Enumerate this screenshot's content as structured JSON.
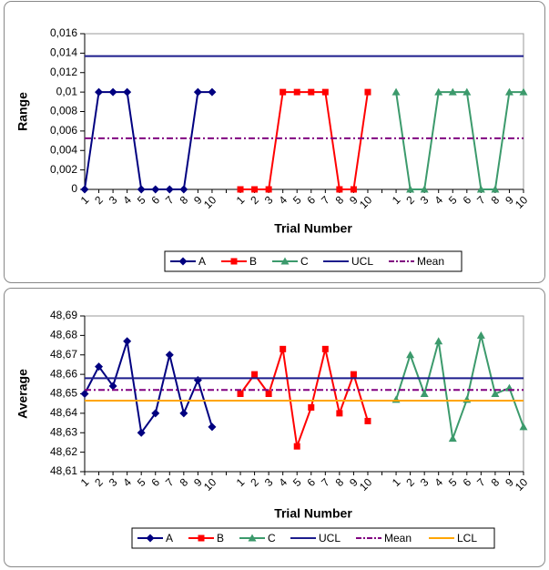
{
  "chart_data": [
    {
      "type": "line",
      "y_label": "Range",
      "x_label": "Trial Number",
      "categories": [
        "1",
        "2",
        "3",
        "4",
        "5",
        "6",
        "7",
        "8",
        "9",
        "10",
        null,
        "1",
        "2",
        "3",
        "4",
        "5",
        "6",
        "7",
        "8",
        "9",
        "10",
        null,
        "1",
        "2",
        "3",
        "4",
        "5",
        "6",
        "7",
        "8",
        "9",
        "10"
      ],
      "ylim": [
        0,
        0.016
      ],
      "yticks": [
        0,
        {
          "value": 0.002,
          "label": "0,002"
        },
        {
          "value": 0.004,
          "label": "0,004"
        },
        {
          "value": 0.006,
          "label": "0,006"
        },
        {
          "value": 0.008,
          "label": "0,008"
        },
        {
          "value": 0.01,
          "label": "0,01"
        },
        {
          "value": 0.012,
          "label": "0,012"
        },
        {
          "value": 0.014,
          "label": "0,014"
        },
        {
          "value": 0.016,
          "label": "0,016"
        }
      ],
      "grid": false,
      "series": [
        {
          "name": "A",
          "color": "#000080",
          "marker": "diamond",
          "values": [
            0,
            0.01,
            0.01,
            0.01,
            0,
            0,
            0,
            0,
            0.01,
            0.01,
            null,
            null,
            null,
            null,
            null,
            null,
            null,
            null,
            null,
            null,
            null,
            null,
            null,
            null,
            null,
            null,
            null,
            null,
            null,
            null,
            null,
            null
          ]
        },
        {
          "name": "B",
          "color": "#ff0000",
          "marker": "square",
          "values": [
            null,
            null,
            null,
            null,
            null,
            null,
            null,
            null,
            null,
            null,
            null,
            0,
            0,
            0,
            0.01,
            0.01,
            0.01,
            0.01,
            0,
            0,
            0.01,
            null,
            null,
            null,
            null,
            null,
            null,
            null,
            null,
            null,
            null,
            null
          ]
        },
        {
          "name": "C",
          "color": "#3c9a6c",
          "marker": "triangle",
          "values": [
            null,
            null,
            null,
            null,
            null,
            null,
            null,
            null,
            null,
            null,
            null,
            null,
            null,
            null,
            null,
            null,
            null,
            null,
            null,
            null,
            null,
            null,
            0.01,
            0,
            0,
            0.01,
            0.01,
            0.01,
            0,
            0,
            0.01,
            0.01
          ]
        },
        {
          "name": "UCL",
          "color": "#1c1c8c",
          "marker": "none",
          "values": [
            0.0137,
            0.0137,
            0.0137,
            0.0137,
            0.0137,
            0.0137,
            0.0137,
            0.0137,
            0.0137,
            0.0137,
            0.0137,
            0.0137,
            0.0137,
            0.0137,
            0.0137,
            0.0137,
            0.0137,
            0.0137,
            0.0137,
            0.0137,
            0.0137,
            0.0137,
            0.0137,
            0.0137,
            0.0137,
            0.0137,
            0.0137,
            0.0137,
            0.0137,
            0.0137,
            0.0137,
            0.0137
          ]
        },
        {
          "name": "Mean",
          "color": "#800080",
          "marker": "none",
          "dash": true,
          "values": [
            0.00525,
            0.00525,
            0.00525,
            0.00525,
            0.00525,
            0.00525,
            0.00525,
            0.00525,
            0.00525,
            0.00525,
            0.00525,
            0.00525,
            0.00525,
            0.00525,
            0.00525,
            0.00525,
            0.00525,
            0.00525,
            0.00525,
            0.00525,
            0.00525,
            0.00525,
            0.00525,
            0.00525,
            0.00525,
            0.00525,
            0.00525,
            0.00525,
            0.00525,
            0.00525,
            0.00525,
            0.00525
          ]
        }
      ]
    },
    {
      "type": "line",
      "y_label": "Average",
      "x_label": "Trial Number",
      "categories": [
        "1",
        "2",
        "3",
        "4",
        "5",
        "6",
        "7",
        "8",
        "9",
        "10",
        null,
        "1",
        "2",
        "3",
        "4",
        "5",
        "6",
        "7",
        "8",
        "9",
        "10",
        null,
        "1",
        "2",
        "3",
        "4",
        "5",
        "6",
        "7",
        "8",
        "9",
        "10"
      ],
      "ylim": [
        48.61,
        48.69
      ],
      "yticks": [
        {
          "value": 48.61,
          "label": "48,61"
        },
        {
          "value": 48.62,
          "label": "48,62"
        },
        {
          "value": 48.63,
          "label": "48,63"
        },
        {
          "value": 48.64,
          "label": "48,64"
        },
        {
          "value": 48.65,
          "label": "48,65"
        },
        {
          "value": 48.66,
          "label": "48,66"
        },
        {
          "value": 48.67,
          "label": "48,67"
        },
        {
          "value": 48.68,
          "label": "48,68"
        },
        {
          "value": 48.69,
          "label": "48,69"
        }
      ],
      "grid": false,
      "series": [
        {
          "name": "A",
          "color": "#000080",
          "marker": "diamond",
          "values": [
            48.65,
            48.664,
            48.654,
            48.677,
            48.63,
            48.64,
            48.67,
            48.64,
            48.657,
            48.633,
            null,
            null,
            null,
            null,
            null,
            null,
            null,
            null,
            null,
            null,
            null,
            null,
            null,
            null,
            null,
            null,
            null,
            null,
            null,
            null,
            null,
            null
          ]
        },
        {
          "name": "B",
          "color": "#ff0000",
          "marker": "square",
          "values": [
            null,
            null,
            null,
            null,
            null,
            null,
            null,
            null,
            null,
            null,
            null,
            48.65,
            48.66,
            48.65,
            48.673,
            48.623,
            48.643,
            48.673,
            48.64,
            48.66,
            48.636,
            null,
            null,
            null,
            null,
            null,
            null,
            null,
            null,
            null,
            null,
            null
          ]
        },
        {
          "name": "C",
          "color": "#3c9a6c",
          "marker": "triangle",
          "values": [
            null,
            null,
            null,
            null,
            null,
            null,
            null,
            null,
            null,
            null,
            null,
            null,
            null,
            null,
            null,
            null,
            null,
            null,
            null,
            null,
            null,
            null,
            48.647,
            48.67,
            48.65,
            48.677,
            48.627,
            48.647,
            48.68,
            48.65,
            48.653,
            48.633
          ]
        },
        {
          "name": "UCL",
          "color": "#1c1c8c",
          "marker": "none",
          "values": [
            48.658,
            48.658,
            48.658,
            48.658,
            48.658,
            48.658,
            48.658,
            48.658,
            48.658,
            48.658,
            48.658,
            48.658,
            48.658,
            48.658,
            48.658,
            48.658,
            48.658,
            48.658,
            48.658,
            48.658,
            48.658,
            48.658,
            48.658,
            48.658,
            48.658,
            48.658,
            48.658,
            48.658,
            48.658,
            48.658,
            48.658,
            48.658
          ]
        },
        {
          "name": "Mean",
          "color": "#800080",
          "marker": "none",
          "dash": true,
          "values": [
            48.652,
            48.652,
            48.652,
            48.652,
            48.652,
            48.652,
            48.652,
            48.652,
            48.652,
            48.652,
            48.652,
            48.652,
            48.652,
            48.652,
            48.652,
            48.652,
            48.652,
            48.652,
            48.652,
            48.652,
            48.652,
            48.652,
            48.652,
            48.652,
            48.652,
            48.652,
            48.652,
            48.652,
            48.652,
            48.652,
            48.652,
            48.652
          ]
        },
        {
          "name": "LCL",
          "color": "#ffa500",
          "marker": "none",
          "values": [
            48.6465,
            48.6465,
            48.6465,
            48.6465,
            48.6465,
            48.6465,
            48.6465,
            48.6465,
            48.6465,
            48.6465,
            48.6465,
            48.6465,
            48.6465,
            48.6465,
            48.6465,
            48.6465,
            48.6465,
            48.6465,
            48.6465,
            48.6465,
            48.6465,
            48.6465,
            48.6465,
            48.6465,
            48.6465,
            48.6465,
            48.6465,
            48.6465,
            48.6465,
            48.6465,
            48.6465,
            48.6465
          ]
        }
      ]
    }
  ]
}
